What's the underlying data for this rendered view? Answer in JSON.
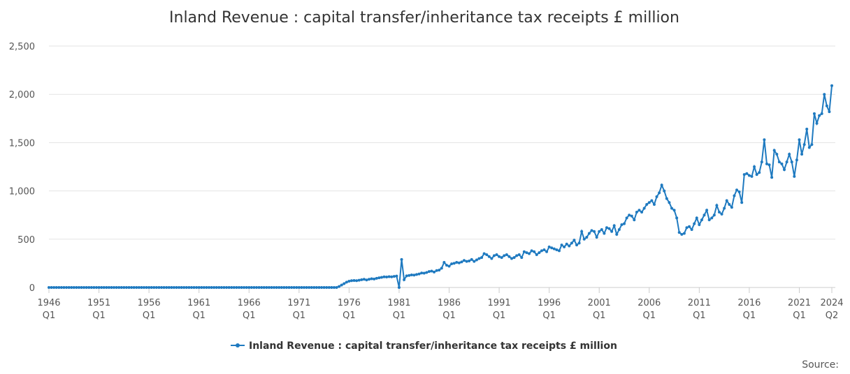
{
  "chart_data": {
    "type": "line",
    "title": "Inland Revenue : capital transfer/inheritance tax receipts £ million",
    "source": "Source:",
    "categories": [
      "1946 Q1",
      null,
      null,
      null,
      null,
      null,
      null,
      null,
      null,
      null,
      null,
      null,
      null,
      null,
      null,
      null,
      null,
      null,
      null,
      null,
      "1951 Q1",
      null,
      null,
      null,
      null,
      null,
      null,
      null,
      null,
      null,
      null,
      null,
      null,
      null,
      null,
      null,
      null,
      null,
      null,
      null,
      "1956 Q1",
      null,
      null,
      null,
      null,
      null,
      null,
      null,
      null,
      null,
      null,
      null,
      null,
      null,
      null,
      null,
      null,
      null,
      null,
      null,
      "1961 Q1",
      null,
      null,
      null,
      null,
      null,
      null,
      null,
      null,
      null,
      null,
      null,
      null,
      null,
      null,
      null,
      null,
      null,
      null,
      null,
      "1966 Q1",
      null,
      null,
      null,
      null,
      null,
      null,
      null,
      null,
      null,
      null,
      null,
      null,
      null,
      null,
      null,
      null,
      null,
      null,
      null,
      "1971 Q1",
      null,
      null,
      null,
      null,
      null,
      null,
      null,
      null,
      null,
      null,
      null,
      null,
      null,
      null,
      null,
      null,
      null,
      null,
      null,
      "1976 Q1",
      null,
      null,
      null,
      null,
      null,
      null,
      null,
      null,
      null,
      null,
      null,
      null,
      null,
      null,
      null,
      null,
      null,
      null,
      null,
      "1981 Q1",
      null,
      null,
      null,
      null,
      null,
      null,
      null,
      null,
      null,
      null,
      null,
      null,
      null,
      null,
      null,
      null,
      null,
      null,
      null,
      "1986 Q1",
      null,
      null,
      null,
      null,
      null,
      null,
      null,
      null,
      null,
      null,
      null,
      null,
      null,
      null,
      null,
      null,
      null,
      null,
      null,
      "1991 Q1",
      null,
      null,
      null,
      null,
      null,
      null,
      null,
      null,
      null,
      null,
      null,
      null,
      null,
      null,
      null,
      null,
      null,
      null,
      null,
      "1996 Q1",
      null,
      null,
      null,
      null,
      null,
      null,
      null,
      null,
      null,
      null,
      null,
      null,
      null,
      null,
      null,
      null,
      null,
      null,
      null,
      "2001 Q1",
      null,
      null,
      null,
      null,
      null,
      null,
      null,
      null,
      null,
      null,
      null,
      null,
      null,
      null,
      null,
      null,
      null,
      null,
      null,
      "2006 Q1",
      null,
      null,
      null,
      null,
      null,
      null,
      null,
      null,
      null,
      null,
      null,
      null,
      null,
      null,
      null,
      null,
      null,
      null,
      null,
      "2011 Q1",
      null,
      null,
      null,
      null,
      null,
      null,
      null,
      null,
      null,
      null,
      null,
      null,
      null,
      null,
      null,
      null,
      null,
      null,
      null,
      "2016 Q1",
      null,
      null,
      null,
      null,
      null,
      null,
      null,
      null,
      null,
      null,
      null,
      null,
      null,
      null,
      null,
      null,
      null,
      null,
      null,
      "2021 Q1",
      null,
      null,
      null,
      null,
      null,
      null,
      null,
      null,
      null,
      null,
      null,
      null,
      "2024 Q2"
    ],
    "series": [
      {
        "name": "Inland Revenue : capital transfer/inheritance tax receipts £ million",
        "color": "#1f7ac0",
        "values": [
          0,
          0,
          0,
          0,
          0,
          0,
          0,
          0,
          0,
          0,
          0,
          0,
          0,
          0,
          0,
          0,
          0,
          0,
          0,
          0,
          0,
          0,
          0,
          0,
          0,
          0,
          0,
          0,
          0,
          0,
          0,
          0,
          0,
          0,
          0,
          0,
          0,
          0,
          0,
          0,
          0,
          0,
          0,
          0,
          0,
          0,
          0,
          0,
          0,
          0,
          0,
          0,
          0,
          0,
          0,
          0,
          0,
          0,
          0,
          0,
          0,
          0,
          0,
          0,
          0,
          0,
          0,
          0,
          0,
          0,
          0,
          0,
          0,
          0,
          0,
          0,
          0,
          0,
          0,
          0,
          0,
          0,
          0,
          0,
          0,
          0,
          0,
          0,
          0,
          0,
          0,
          0,
          0,
          0,
          0,
          0,
          0,
          0,
          0,
          0,
          0,
          0,
          0,
          0,
          0,
          0,
          0,
          0,
          0,
          0,
          0,
          0,
          0,
          0,
          0,
          0,
          10,
          25,
          40,
          55,
          65,
          70,
          72,
          70,
          75,
          80,
          85,
          78,
          85,
          90,
          88,
          95,
          100,
          105,
          110,
          108,
          112,
          110,
          115,
          118,
          0,
          290,
          80,
          120,
          125,
          130,
          128,
          135,
          140,
          150,
          148,
          155,
          165,
          170,
          160,
          175,
          180,
          200,
          260,
          230,
          220,
          245,
          250,
          260,
          255,
          265,
          280,
          270,
          275,
          290,
          270,
          285,
          300,
          310,
          350,
          340,
          320,
          300,
          330,
          340,
          320,
          310,
          330,
          340,
          320,
          300,
          310,
          330,
          340,
          310,
          370,
          360,
          350,
          380,
          370,
          340,
          360,
          380,
          390,
          370,
          420,
          410,
          400,
          390,
          380,
          440,
          420,
          450,
          430,
          460,
          490,
          440,
          460,
          580,
          500,
          520,
          560,
          590,
          580,
          520,
          580,
          600,
          560,
          620,
          610,
          580,
          640,
          550,
          600,
          650,
          660,
          720,
          750,
          740,
          700,
          780,
          800,
          780,
          820,
          860,
          880,
          900,
          860,
          940,
          980,
          1060,
          1000,
          920,
          880,
          820,
          800,
          720,
          570,
          550,
          560,
          620,
          630,
          600,
          660,
          720,
          650,
          700,
          750,
          800,
          700,
          720,
          750,
          850,
          780,
          760,
          820,
          900,
          860,
          830,
          950,
          1010,
          990,
          880,
          1170,
          1180,
          1160,
          1150,
          1250,
          1170,
          1190,
          1300,
          1530,
          1280,
          1270,
          1140,
          1420,
          1380,
          1300,
          1280,
          1220,
          1300,
          1380,
          1300,
          1150,
          1320,
          1530,
          1380,
          1480,
          1640,
          1450,
          1480,
          1800,
          1700,
          1780,
          1800,
          2000,
          1880,
          1820,
          2090
        ]
      }
    ],
    "ylim": [
      0,
      2500
    ],
    "yticks": [
      0,
      500,
      {
        "value": 1000,
        "label": "1,000"
      },
      {
        "value": 1500,
        "label": "1,500"
      },
      {
        "value": 2000,
        "label": "2,000"
      },
      {
        "value": 2500,
        "label": "2,500"
      }
    ],
    "grid": true,
    "legend": "bottom"
  }
}
